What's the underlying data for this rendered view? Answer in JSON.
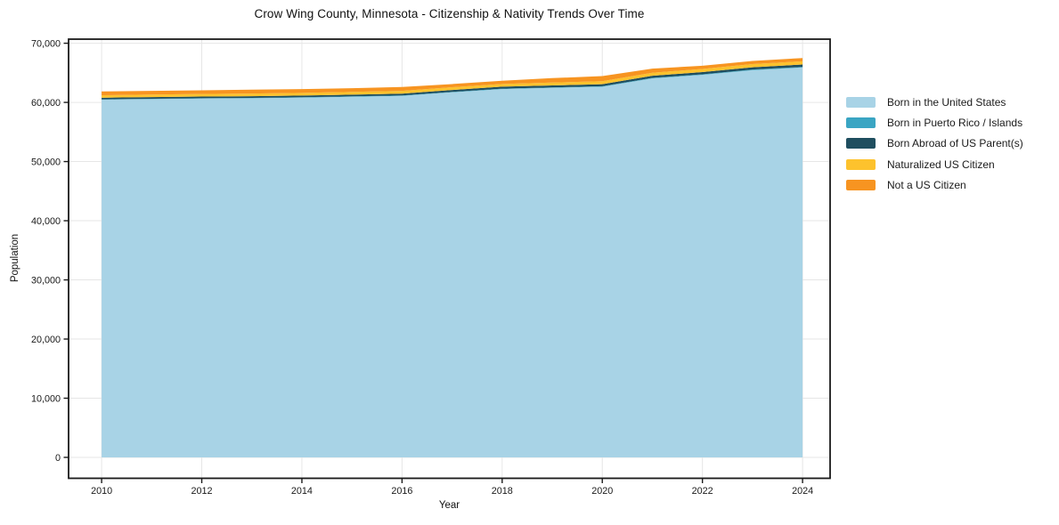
{
  "chart_data": {
    "type": "area",
    "stacked": true,
    "title": "Crow Wing County, Minnesota - Citizenship & Nativity Trends Over Time",
    "xlabel": "Year",
    "ylabel": "Population",
    "x": [
      2010,
      2011,
      2012,
      2013,
      2014,
      2015,
      2016,
      2017,
      2018,
      2019,
      2020,
      2021,
      2022,
      2023,
      2024
    ],
    "series": [
      {
        "name": "Born in the United States",
        "color": "#a8d3e6",
        "values": [
          60450,
          60550,
          60650,
          60700,
          60800,
          60950,
          61100,
          61700,
          62250,
          62450,
          62650,
          64050,
          64650,
          65450,
          65900
        ]
      },
      {
        "name": "Born in Puerto Rico / Islands",
        "color": "#3aa5c3",
        "values": [
          60,
          60,
          60,
          60,
          70,
          70,
          70,
          80,
          80,
          80,
          90,
          90,
          100,
          100,
          100
        ]
      },
      {
        "name": "Born Abroad of US Parent(s)",
        "color": "#1f4e5f",
        "values": [
          280,
          280,
          280,
          280,
          290,
          290,
          300,
          310,
          330,
          340,
          340,
          360,
          380,
          390,
          400
        ]
      },
      {
        "name": "Naturalized US Citizen",
        "color": "#fdc22d",
        "values": [
          420,
          430,
          440,
          450,
          450,
          460,
          470,
          480,
          460,
          480,
          510,
          520,
          530,
          540,
          550
        ]
      },
      {
        "name": "Not a US Citizen",
        "color": "#f79421",
        "values": [
          640,
          630,
          620,
          660,
          640,
          630,
          660,
          530,
          530,
          750,
          860,
          680,
          540,
          520,
          550
        ]
      }
    ],
    "xlim": [
      2009.34,
      2024.55
    ],
    "ylim": [
      -3535,
      70690
    ],
    "xticks": {
      "values": [
        2010,
        2012,
        2014,
        2016,
        2018,
        2020,
        2022,
        2024
      ],
      "labels": [
        "2010",
        "2012",
        "2014",
        "2016",
        "2018",
        "2020",
        "2022",
        "2024"
      ]
    },
    "yticks": {
      "values": [
        0,
        10000,
        20000,
        30000,
        40000,
        50000,
        60000,
        70000
      ],
      "labels": [
        "0",
        "10,000",
        "20,000",
        "30,000",
        "40,000",
        "50,000",
        "60,000",
        "70,000"
      ]
    },
    "grid": true,
    "grid_color": "#e6e6e6",
    "spine_color": "#1a1a1a",
    "legend_position": "outside-right"
  }
}
